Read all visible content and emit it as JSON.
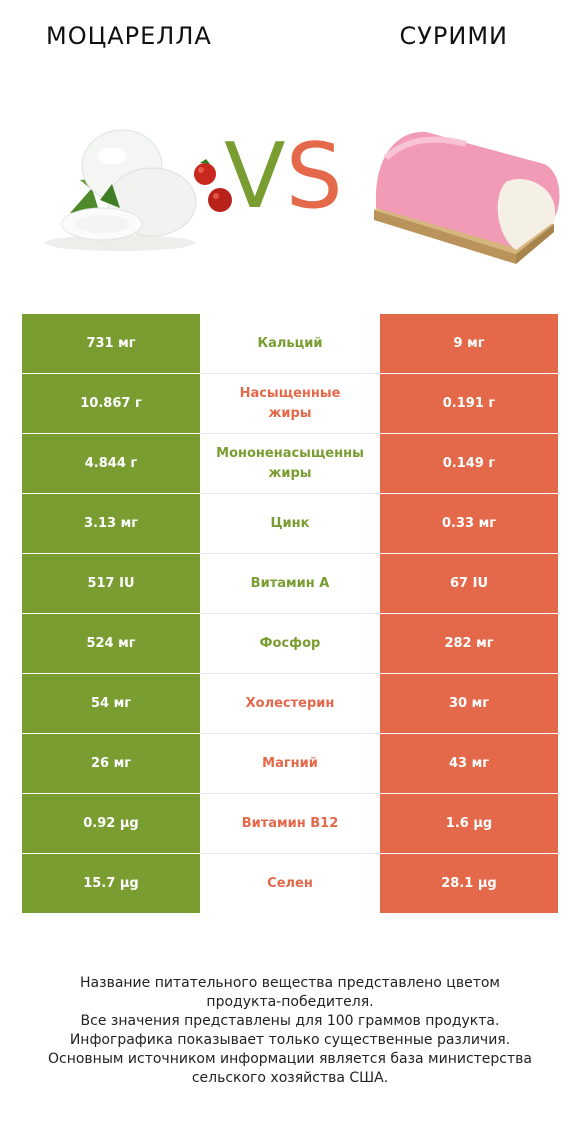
{
  "header": {
    "left_title": "МОЦАРЕЛЛА",
    "right_title": "СУРИМИ"
  },
  "vs": {
    "v": "V",
    "s": "S"
  },
  "colors": {
    "left": "#7a9d32",
    "right": "#e3694a"
  },
  "rows": [
    {
      "left": "731 мг",
      "name": [
        "Кальций"
      ],
      "right": "9 мг",
      "winner": "left"
    },
    {
      "left": "10.867 г",
      "name": [
        "Насыщенные",
        "жиры"
      ],
      "right": "0.191 г",
      "winner": "right"
    },
    {
      "left": "4.844 г",
      "name": [
        "Мононенасыщенны",
        "жиры"
      ],
      "right": "0.149 г",
      "winner": "left"
    },
    {
      "left": "3.13 мг",
      "name": [
        "Цинк"
      ],
      "right": "0.33 мг",
      "winner": "left"
    },
    {
      "left": "517 IU",
      "name": [
        "Витамин A"
      ],
      "right": "67 IU",
      "winner": "left"
    },
    {
      "left": "524 мг",
      "name": [
        "Фосфор"
      ],
      "right": "282 мг",
      "winner": "left"
    },
    {
      "left": "54 мг",
      "name": [
        "Холестерин"
      ],
      "right": "30 мг",
      "winner": "right"
    },
    {
      "left": "26 мг",
      "name": [
        "Магний"
      ],
      "right": "43 мг",
      "winner": "right"
    },
    {
      "left": "0.92 µg",
      "name": [
        "Витамин B12"
      ],
      "right": "1.6 µg",
      "winner": "right"
    },
    {
      "left": "15.7 µg",
      "name": [
        "Селен"
      ],
      "right": "28.1 µg",
      "winner": "right"
    }
  ],
  "footer": [
    "Название питательного вещества представлено цветом",
    "продукта-победителя.",
    "Все значения представлены для 100 граммов продукта.",
    "Инфографика показывает только существенные различия.",
    "Основным источником информации является база министерства",
    "сельского хозяйства США."
  ]
}
